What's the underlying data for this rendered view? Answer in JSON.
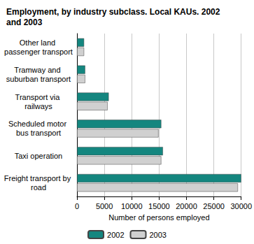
{
  "chart_data": {
    "type": "bar",
    "orientation": "horizontal",
    "title": "Employment, by industry subclass. Local KAUs. 2002 and 2003",
    "x_label": "Number of persons employed",
    "categories": [
      "Other land passenger transport",
      "Tramway and suburban transport",
      "Transport via railways",
      "Scheduled motor bus transport",
      "Taxi operation",
      "Freight transport by road"
    ],
    "series": [
      {
        "name": "2002",
        "color": "#14867f",
        "values": [
          1300,
          1500,
          5800,
          15400,
          15700,
          30000
        ]
      },
      {
        "name": "2003",
        "color": "#d0d0d0",
        "values": [
          1300,
          1500,
          5600,
          14900,
          15400,
          29400
        ]
      }
    ],
    "xlim": [
      0,
      30000
    ],
    "xticks": [
      0,
      5000,
      10000,
      15000,
      20000,
      25000,
      30000
    ],
    "grid": true,
    "legend": "bottom"
  }
}
